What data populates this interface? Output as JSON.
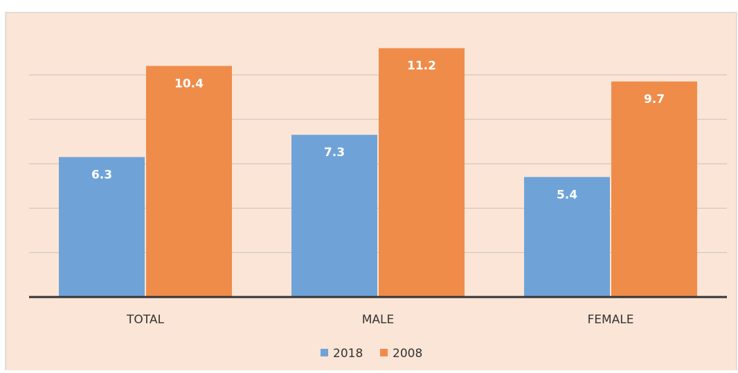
{
  "chart_data": {
    "type": "bar",
    "categories": [
      "TOTAL",
      "MALE",
      "FEMALE"
    ],
    "series": [
      {
        "name": "2018",
        "color": "#6fa3d8",
        "values": [
          6.3,
          7.3,
          5.4
        ]
      },
      {
        "name": "2008",
        "color": "#ef8c4a",
        "values": [
          10.4,
          11.2,
          9.7
        ]
      }
    ],
    "ylim": [
      0,
      12
    ],
    "yticks": [
      0,
      2,
      4,
      6,
      8,
      10
    ],
    "grid": true,
    "legend": "bottom"
  }
}
